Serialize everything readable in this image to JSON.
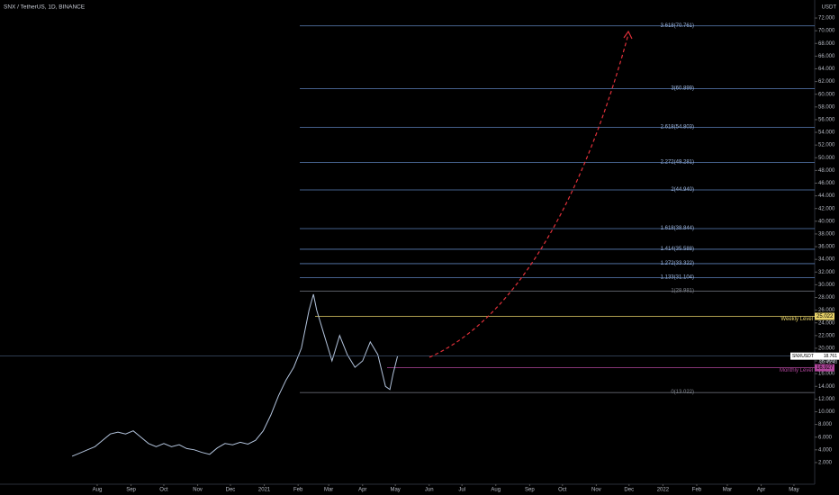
{
  "chart_data": {
    "type": "line",
    "title": "SNX / TetherUS, 1D, BINANCE",
    "currency": "USDT",
    "x": [
      -23,
      -16,
      -9,
      -2,
      5,
      12,
      19,
      26,
      33,
      40,
      47,
      54,
      61,
      68,
      75,
      82,
      89,
      96,
      103,
      110,
      117,
      124,
      131,
      138,
      145,
      152,
      159,
      166,
      173,
      180,
      187,
      194,
      198,
      201,
      208,
      215,
      222,
      229,
      236,
      243,
      250,
      257,
      264,
      268,
      271,
      275
    ],
    "series": [
      {
        "name": "SNXUSDT",
        "color": "#b2c3dc",
        "values": [
          3.0,
          3.5,
          4.0,
          4.5,
          5.5,
          6.5,
          6.8,
          6.5,
          7.0,
          6.0,
          5.0,
          4.5,
          5.0,
          4.5,
          4.8,
          4.2,
          4.0,
          3.6,
          3.3,
          4.3,
          5.0,
          4.8,
          5.2,
          4.9,
          5.5,
          7.0,
          9.5,
          12.5,
          15,
          17,
          20,
          26,
          28.5,
          26,
          22,
          18,
          22,
          19,
          17,
          18,
          21,
          19,
          14,
          13.5,
          16,
          18.761
        ]
      }
    ],
    "last_price": 18.761,
    "countdown": "10:49:48",
    "xlim": [
      -89,
      657
    ],
    "xticks": [
      {
        "value": 0,
        "label": "Aug"
      },
      {
        "value": 31,
        "label": "Sep"
      },
      {
        "value": 61,
        "label": "Oct"
      },
      {
        "value": 92,
        "label": "Nov"
      },
      {
        "value": 122,
        "label": "Dec"
      },
      {
        "value": 153,
        "label": "2021"
      },
      {
        "value": 184,
        "label": "Feb"
      },
      {
        "value": 212,
        "label": "Mar"
      },
      {
        "value": 243,
        "label": "Apr"
      },
      {
        "value": 273,
        "label": "May"
      },
      {
        "value": 304,
        "label": "Jun"
      },
      {
        "value": 334,
        "label": "Jul"
      },
      {
        "value": 365,
        "label": "Aug"
      },
      {
        "value": 396,
        "label": "Sep"
      },
      {
        "value": 426,
        "label": "Oct"
      },
      {
        "value": 457,
        "label": "Nov"
      },
      {
        "value": 487,
        "label": "Dec"
      },
      {
        "value": 518,
        "label": "2022"
      },
      {
        "value": 549,
        "label": "Feb"
      },
      {
        "value": 577,
        "label": "Mar"
      },
      {
        "value": 608,
        "label": "Apr"
      },
      {
        "value": 638,
        "label": "May"
      }
    ],
    "ylim": [
      -1.41,
      74.84
    ],
    "yticks": [
      {
        "value": 2,
        "label": "2.000"
      },
      {
        "value": 4,
        "label": "4.000"
      },
      {
        "value": 6,
        "label": "6.000"
      },
      {
        "value": 8,
        "label": "8.000"
      },
      {
        "value": 10,
        "label": "10.000"
      },
      {
        "value": 12,
        "label": "12.000"
      },
      {
        "value": 14,
        "label": "14.000"
      },
      {
        "value": 16,
        "label": "16.000"
      },
      {
        "value": 18,
        "label": "18.000"
      },
      {
        "value": 20,
        "label": "20.000"
      },
      {
        "value": 22,
        "label": "22.000"
      },
      {
        "value": 24,
        "label": "24.000"
      },
      {
        "value": 26,
        "label": "26.000"
      },
      {
        "value": 28,
        "label": "28.000"
      },
      {
        "value": 30,
        "label": "30.000"
      },
      {
        "value": 32,
        "label": "32.000"
      },
      {
        "value": 34,
        "label": "34.000"
      },
      {
        "value": 36,
        "label": "36.000"
      },
      {
        "value": 38,
        "label": "38.000"
      },
      {
        "value": 40,
        "label": "40.000"
      },
      {
        "value": 42,
        "label": "42.000"
      },
      {
        "value": 44,
        "label": "44.000"
      },
      {
        "value": 46,
        "label": "46.000"
      },
      {
        "value": 48,
        "label": "48.000"
      },
      {
        "value": 50,
        "label": "50.000"
      },
      {
        "value": 52,
        "label": "52.000"
      },
      {
        "value": 54,
        "label": "54.000"
      },
      {
        "value": 56,
        "label": "56.000"
      },
      {
        "value": 58,
        "label": "58.000"
      },
      {
        "value": 60,
        "label": "60.000"
      },
      {
        "value": 62,
        "label": "62.000"
      },
      {
        "value": 64,
        "label": "64.000"
      },
      {
        "value": 66,
        "label": "66.000"
      },
      {
        "value": 68,
        "label": "68.000"
      },
      {
        "value": 70,
        "label": "70.000"
      },
      {
        "value": 72,
        "label": "72.000"
      }
    ],
    "fib_levels": [
      {
        "label": "3.618(70.761)",
        "value": 70.761,
        "color": "#5b7fb8"
      },
      {
        "label": "3(60.899)",
        "value": 60.899,
        "color": "#5b7fb8"
      },
      {
        "label": "2.618(54.803)",
        "value": 54.803,
        "color": "#5b7fb8"
      },
      {
        "label": "2.272(49.281)",
        "value": 49.281,
        "color": "#5b7fb8"
      },
      {
        "label": "2(44.940)",
        "value": 44.94,
        "color": "#5b7fb8"
      },
      {
        "label": "1.618(38.844)",
        "value": 38.844,
        "color": "#5b7fb8"
      },
      {
        "label": "1.414(35.588)",
        "value": 35.588,
        "color": "#5b7fb8"
      },
      {
        "label": "1.272(33.322)",
        "value": 33.322,
        "color": "#5b7fb8"
      },
      {
        "label": "1.133(31.104)",
        "value": 31.104,
        "color": "#5b7fb8"
      },
      {
        "label": "1(28.981)",
        "value": 28.981,
        "color": "#666a73"
      },
      {
        "label": "0(13.022)",
        "value": 13.022,
        "color": "#666a73"
      }
    ],
    "levels": [
      {
        "label": "Weekly Level",
        "value": 25.022,
        "color": "#e8d36a"
      },
      {
        "label": "Monthly Level",
        "value": 16.927,
        "color": "#b0459b"
      }
    ]
  }
}
